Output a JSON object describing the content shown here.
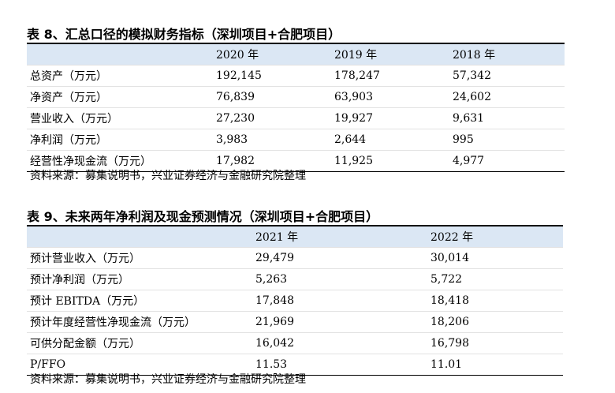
{
  "table8": {
    "title": "表 8、汇总口径的模拟财务指标（深圳项目+合肥项目）",
    "headers": [
      "",
      "2020 年",
      "2019 年",
      "2018 年"
    ],
    "rows": [
      [
        "总资产（万元）",
        "192,145",
        "178,247",
        "57,342"
      ],
      [
        "净资产（万元）",
        "76,839",
        "63,903",
        "24,602"
      ],
      [
        "营业收入（万元）",
        "27,230",
        "19,927",
        "9,631"
      ],
      [
        "净利润（万元）",
        "3,983",
        "2,644",
        "995"
      ],
      [
        "经营性净现金流（万元）",
        "17,982",
        "11,925",
        "4,977"
      ]
    ],
    "source": "资料来源：募集说明书，兴业证券经济与金融研究院整理"
  },
  "table9": {
    "title": "表 9、未来两年净利润及现金预测情况（深圳项目+合肥项目）",
    "headers": [
      "",
      "2021 年",
      "2022 年"
    ],
    "rows": [
      [
        "预计营业收入（万元）",
        "29,479",
        "30,014"
      ],
      [
        "预计净利润（万元）",
        "5,263",
        "5,722"
      ],
      [
        "预计 EBITDA（万元）",
        "17,848",
        "18,418"
      ],
      [
        "预计年度经营性净现金流（万元）",
        "21,969",
        "18,206"
      ],
      [
        "可供分配金额（万元）",
        "16,042",
        "16,798"
      ],
      [
        "P/FFO",
        "11.53",
        "11.01"
      ]
    ],
    "source": "资料来源：募集说明书，兴业证券经济与金融研究院整理"
  }
}
